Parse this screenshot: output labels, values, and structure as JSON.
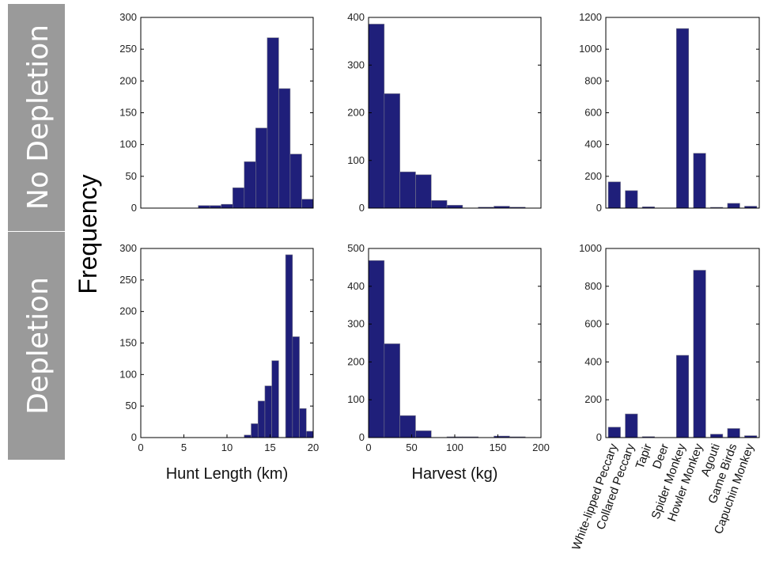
{
  "figure": {
    "row_labels": [
      "No Depletion",
      "Depletion"
    ],
    "y_label": "Frequency",
    "bar_color": "#1f1f7a"
  },
  "chart_data": [
    {
      "id": "hunt-nodepletion",
      "type": "bar",
      "row": "No Depletion",
      "xlabel": "",
      "ylabel": "Frequency",
      "xlim": [
        0,
        20
      ],
      "ylim": [
        0,
        300
      ],
      "xticks": [],
      "yticks": [
        0,
        50,
        100,
        150,
        200,
        250,
        300
      ],
      "bin_edges": [
        0,
        1.33,
        2.67,
        4.0,
        5.33,
        6.67,
        8.0,
        9.33,
        10.67,
        12.0,
        13.33,
        14.67,
        16.0,
        17.33,
        18.67,
        20.0
      ],
      "values": [
        0,
        0,
        0,
        0,
        0,
        4,
        4,
        6,
        32,
        73,
        126,
        268,
        188,
        85,
        14
      ]
    },
    {
      "id": "harvest-nodepletion",
      "type": "bar",
      "row": "No Depletion",
      "xlabel": "",
      "ylabel": "",
      "xlim": [
        0,
        200
      ],
      "ylim": [
        0,
        400
      ],
      "xticks": [],
      "yticks": [
        0,
        100,
        200,
        300,
        400
      ],
      "bin_edges": [
        0,
        18.18,
        36.36,
        54.55,
        72.73,
        90.91,
        109.09,
        127.27,
        145.45,
        163.64,
        181.82,
        200
      ],
      "values": [
        386,
        240,
        76,
        70,
        16,
        6,
        0,
        2,
        4,
        2,
        0
      ]
    },
    {
      "id": "species-nodepletion",
      "type": "bar",
      "row": "No Depletion",
      "xlabel": "",
      "ylabel": "",
      "ylim": [
        0,
        1200
      ],
      "yticks": [
        0,
        200,
        400,
        600,
        800,
        1000,
        1200
      ],
      "categories": [
        "White-lipped Peccary",
        "Collared Peccary",
        "Tapir",
        "Deer",
        "Spider Monkey",
        "Howler Monkey",
        "Agouti",
        "Game Birds",
        "Capuchin Monkey"
      ],
      "values": [
        165,
        110,
        8,
        0,
        1130,
        345,
        5,
        30,
        12
      ]
    },
    {
      "id": "hunt-depletion",
      "type": "bar",
      "row": "Depletion",
      "xlabel": "Hunt Length (km)",
      "ylabel": "Frequency",
      "xlim": [
        0,
        20
      ],
      "ylim": [
        0,
        300
      ],
      "xticks": [
        0,
        5,
        10,
        15,
        20
      ],
      "yticks": [
        0,
        50,
        100,
        150,
        200,
        250,
        300
      ],
      "bin_edges": [
        0,
        0.8,
        1.6,
        2.4,
        3.2,
        4.0,
        4.8,
        5.6,
        6.4,
        7.2,
        8.0,
        8.8,
        9.6,
        10.4,
        11.2,
        12.0,
        12.8,
        13.6,
        14.4,
        15.2,
        16.0,
        16.8,
        17.6,
        18.4,
        19.2,
        20.0
      ],
      "values": [
        0,
        0,
        0,
        0,
        0,
        0,
        0,
        0,
        0,
        0,
        0,
        0,
        0,
        0,
        0,
        4,
        22,
        58,
        82,
        122,
        0,
        290,
        160,
        46,
        10
      ]
    },
    {
      "id": "harvest-depletion",
      "type": "bar",
      "row": "Depletion",
      "xlabel": "Harvest (kg)",
      "ylabel": "",
      "xlim": [
        0,
        200
      ],
      "ylim": [
        0,
        500
      ],
      "xticks": [
        0,
        50,
        100,
        150,
        200
      ],
      "yticks": [
        0,
        100,
        200,
        300,
        400,
        500
      ],
      "bin_edges": [
        0,
        18.18,
        36.36,
        54.55,
        72.73,
        90.91,
        109.09,
        127.27,
        145.45,
        163.64,
        181.82,
        200
      ],
      "values": [
        468,
        248,
        58,
        18,
        0,
        2,
        2,
        0,
        4,
        2,
        0
      ]
    },
    {
      "id": "species-depletion",
      "type": "bar",
      "row": "Depletion",
      "xlabel": "",
      "ylabel": "",
      "ylim": [
        0,
        1000
      ],
      "yticks": [
        0,
        200,
        400,
        600,
        800,
        1000
      ],
      "categories": [
        "White-lipped Peccary",
        "Collared Peccary",
        "Tapir",
        "Deer",
        "Spider Monkey",
        "Howler Monkey",
        "Agouti",
        "Game Birds",
        "Capuchin Monkey"
      ],
      "values": [
        55,
        125,
        5,
        0,
        435,
        885,
        18,
        48,
        10
      ]
    }
  ]
}
